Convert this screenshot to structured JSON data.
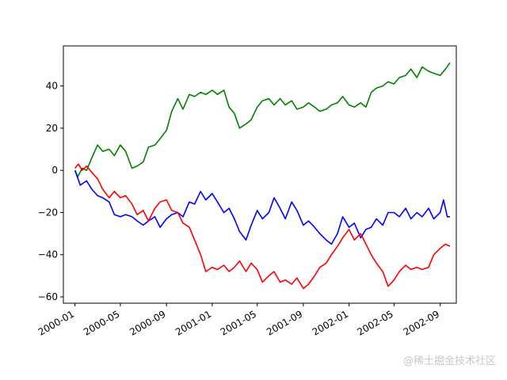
{
  "chart_data": {
    "type": "line",
    "title": "",
    "xlabel": "",
    "ylabel": "",
    "x_range": [
      "1999-12-01",
      "2002-10-14"
    ],
    "ylim": [
      -63,
      59
    ],
    "grid": false,
    "legend": "none",
    "x_ticks": [
      {
        "date": "2000-01-01",
        "label": "2000-01"
      },
      {
        "date": "2000-05-01",
        "label": "2000-05"
      },
      {
        "date": "2000-09-01",
        "label": "2000-09"
      },
      {
        "date": "2001-01-01",
        "label": "2001-01"
      },
      {
        "date": "2001-05-01",
        "label": "2001-05"
      },
      {
        "date": "2001-09-01",
        "label": "2001-09"
      },
      {
        "date": "2002-01-01",
        "label": "2002-01"
      },
      {
        "date": "2002-05-01",
        "label": "2002-05"
      },
      {
        "date": "2002-09-01",
        "label": "2002-09"
      }
    ],
    "y_ticks": [
      {
        "value": 40,
        "label": "40"
      },
      {
        "value": 20,
        "label": "20"
      },
      {
        "value": 0,
        "label": "0"
      },
      {
        "value": -20,
        "label": "−20"
      },
      {
        "value": -40,
        "label": "−40"
      },
      {
        "value": -60,
        "label": "−60"
      }
    ],
    "series": [
      {
        "color": "#008000",
        "points": [
          [
            "2000-01-01",
            0
          ],
          [
            "2000-01-08",
            -3
          ],
          [
            "2000-01-20",
            1
          ],
          [
            "2000-02-01",
            0
          ],
          [
            "2000-02-15",
            6
          ],
          [
            "2000-03-01",
            12
          ],
          [
            "2000-03-15",
            9
          ],
          [
            "2000-04-01",
            10
          ],
          [
            "2000-04-15",
            7
          ],
          [
            "2000-05-01",
            12
          ],
          [
            "2000-05-15",
            9
          ],
          [
            "2000-06-01",
            1
          ],
          [
            "2000-06-15",
            2
          ],
          [
            "2000-07-01",
            4
          ],
          [
            "2000-07-15",
            11
          ],
          [
            "2000-08-01",
            12
          ],
          [
            "2000-08-15",
            15
          ],
          [
            "2000-09-01",
            19
          ],
          [
            "2000-09-15",
            28
          ],
          [
            "2000-10-01",
            34
          ],
          [
            "2000-10-15",
            29
          ],
          [
            "2000-11-01",
            36
          ],
          [
            "2000-11-15",
            35
          ],
          [
            "2000-12-01",
            37
          ],
          [
            "2000-12-15",
            36
          ],
          [
            "2001-01-01",
            38
          ],
          [
            "2001-01-15",
            36
          ],
          [
            "2001-02-01",
            38
          ],
          [
            "2001-02-15",
            30
          ],
          [
            "2001-03-01",
            27
          ],
          [
            "2001-03-15",
            20
          ],
          [
            "2001-04-01",
            22
          ],
          [
            "2001-04-15",
            24
          ],
          [
            "2001-05-01",
            30
          ],
          [
            "2001-05-15",
            33
          ],
          [
            "2001-06-01",
            34
          ],
          [
            "2001-06-15",
            31
          ],
          [
            "2001-07-01",
            34
          ],
          [
            "2001-07-15",
            31
          ],
          [
            "2001-08-01",
            33
          ],
          [
            "2001-08-15",
            29
          ],
          [
            "2001-09-01",
            30
          ],
          [
            "2001-09-15",
            32
          ],
          [
            "2001-10-01",
            30
          ],
          [
            "2001-10-15",
            28
          ],
          [
            "2001-11-01",
            29
          ],
          [
            "2001-11-15",
            31
          ],
          [
            "2001-12-01",
            32
          ],
          [
            "2001-12-15",
            35
          ],
          [
            "2002-01-01",
            31
          ],
          [
            "2002-01-15",
            30
          ],
          [
            "2002-02-01",
            32
          ],
          [
            "2002-02-15",
            30
          ],
          [
            "2002-03-01",
            37
          ],
          [
            "2002-03-15",
            39
          ],
          [
            "2002-04-01",
            40
          ],
          [
            "2002-04-15",
            42
          ],
          [
            "2002-05-01",
            41
          ],
          [
            "2002-05-15",
            44
          ],
          [
            "2002-06-01",
            45
          ],
          [
            "2002-06-15",
            48
          ],
          [
            "2002-07-01",
            44
          ],
          [
            "2002-07-15",
            49
          ],
          [
            "2002-08-01",
            47
          ],
          [
            "2002-08-15",
            46
          ],
          [
            "2002-09-01",
            45
          ],
          [
            "2002-09-15",
            48
          ],
          [
            "2002-09-27",
            51
          ]
        ]
      },
      {
        "color": "#0000ff",
        "points": [
          [
            "2000-01-01",
            0
          ],
          [
            "2000-01-15",
            -7
          ],
          [
            "2000-02-01",
            -5
          ],
          [
            "2000-02-15",
            -9
          ],
          [
            "2000-03-01",
            -12
          ],
          [
            "2000-03-15",
            -13
          ],
          [
            "2000-04-01",
            -15
          ],
          [
            "2000-04-15",
            -21
          ],
          [
            "2000-05-01",
            -22
          ],
          [
            "2000-05-15",
            -21
          ],
          [
            "2000-06-01",
            -22
          ],
          [
            "2000-06-15",
            -24
          ],
          [
            "2000-07-01",
            -26
          ],
          [
            "2000-07-15",
            -24
          ],
          [
            "2000-08-01",
            -22
          ],
          [
            "2000-08-15",
            -27
          ],
          [
            "2000-09-01",
            -23
          ],
          [
            "2000-09-15",
            -21
          ],
          [
            "2000-10-01",
            -20
          ],
          [
            "2000-10-15",
            -22
          ],
          [
            "2000-11-01",
            -15
          ],
          [
            "2000-11-15",
            -16
          ],
          [
            "2000-12-01",
            -10
          ],
          [
            "2000-12-15",
            -14
          ],
          [
            "2001-01-01",
            -11
          ],
          [
            "2001-01-15",
            -15
          ],
          [
            "2001-02-01",
            -20
          ],
          [
            "2001-02-15",
            -18
          ],
          [
            "2001-03-01",
            -23
          ],
          [
            "2001-03-15",
            -29
          ],
          [
            "2001-04-01",
            -33
          ],
          [
            "2001-04-15",
            -26
          ],
          [
            "2001-05-01",
            -19
          ],
          [
            "2001-05-15",
            -23
          ],
          [
            "2001-06-01",
            -20
          ],
          [
            "2001-06-15",
            -13
          ],
          [
            "2001-07-01",
            -18
          ],
          [
            "2001-07-15",
            -23
          ],
          [
            "2001-08-01",
            -15
          ],
          [
            "2001-08-15",
            -19
          ],
          [
            "2001-09-01",
            -26
          ],
          [
            "2001-09-15",
            -24
          ],
          [
            "2001-10-01",
            -27
          ],
          [
            "2001-10-15",
            -30
          ],
          [
            "2001-11-01",
            -33
          ],
          [
            "2001-11-15",
            -35
          ],
          [
            "2001-12-01",
            -30
          ],
          [
            "2001-12-15",
            -22
          ],
          [
            "2002-01-01",
            -27
          ],
          [
            "2002-01-15",
            -25
          ],
          [
            "2002-02-01",
            -32
          ],
          [
            "2002-02-15",
            -28
          ],
          [
            "2002-03-01",
            -27
          ],
          [
            "2002-03-15",
            -23
          ],
          [
            "2002-04-01",
            -26
          ],
          [
            "2002-04-15",
            -20
          ],
          [
            "2002-05-01",
            -20
          ],
          [
            "2002-05-15",
            -22
          ],
          [
            "2002-06-01",
            -18
          ],
          [
            "2002-06-15",
            -23
          ],
          [
            "2002-07-01",
            -20
          ],
          [
            "2002-07-15",
            -22
          ],
          [
            "2002-08-01",
            -18
          ],
          [
            "2002-08-15",
            -23
          ],
          [
            "2002-09-01",
            -20
          ],
          [
            "2002-09-10",
            -14
          ],
          [
            "2002-09-20",
            -22
          ],
          [
            "2002-09-27",
            -22
          ]
        ]
      },
      {
        "color": "#ff0000",
        "points": [
          [
            "2000-01-01",
            1
          ],
          [
            "2000-01-10",
            3
          ],
          [
            "2000-01-20",
            0
          ],
          [
            "2000-02-01",
            2
          ],
          [
            "2000-02-15",
            -1
          ],
          [
            "2000-03-01",
            -4
          ],
          [
            "2000-03-15",
            -9
          ],
          [
            "2000-04-01",
            -13
          ],
          [
            "2000-04-15",
            -10
          ],
          [
            "2000-05-01",
            -13
          ],
          [
            "2000-05-15",
            -12
          ],
          [
            "2000-06-01",
            -16
          ],
          [
            "2000-06-15",
            -21
          ],
          [
            "2000-07-01",
            -19
          ],
          [
            "2000-07-15",
            -24
          ],
          [
            "2000-08-01",
            -18
          ],
          [
            "2000-08-15",
            -15
          ],
          [
            "2000-09-01",
            -14
          ],
          [
            "2000-09-15",
            -19
          ],
          [
            "2000-10-01",
            -20
          ],
          [
            "2000-10-15",
            -25
          ],
          [
            "2000-11-01",
            -27
          ],
          [
            "2000-11-15",
            -33
          ],
          [
            "2000-12-01",
            -40
          ],
          [
            "2000-12-15",
            -48
          ],
          [
            "2001-01-01",
            -46
          ],
          [
            "2001-01-15",
            -47
          ],
          [
            "2001-02-01",
            -45
          ],
          [
            "2001-02-15",
            -48
          ],
          [
            "2001-03-01",
            -46
          ],
          [
            "2001-03-15",
            -43
          ],
          [
            "2001-04-01",
            -48
          ],
          [
            "2001-04-15",
            -44
          ],
          [
            "2001-05-01",
            -47
          ],
          [
            "2001-05-15",
            -53
          ],
          [
            "2001-06-01",
            -50
          ],
          [
            "2001-06-15",
            -48
          ],
          [
            "2001-07-01",
            -53
          ],
          [
            "2001-07-15",
            -52
          ],
          [
            "2001-08-01",
            -54
          ],
          [
            "2001-08-15",
            -51
          ],
          [
            "2001-09-01",
            -56
          ],
          [
            "2001-09-15",
            -54
          ],
          [
            "2001-10-01",
            -50
          ],
          [
            "2001-10-15",
            -46
          ],
          [
            "2001-11-01",
            -44
          ],
          [
            "2001-11-15",
            -40
          ],
          [
            "2001-12-01",
            -36
          ],
          [
            "2001-12-15",
            -32
          ],
          [
            "2002-01-01",
            -28
          ],
          [
            "2002-01-15",
            -33
          ],
          [
            "2002-02-01",
            -30
          ],
          [
            "2002-02-15",
            -35
          ],
          [
            "2002-03-01",
            -40
          ],
          [
            "2002-03-15",
            -44
          ],
          [
            "2002-04-01",
            -48
          ],
          [
            "2002-04-15",
            -55
          ],
          [
            "2002-05-01",
            -52
          ],
          [
            "2002-05-15",
            -48
          ],
          [
            "2002-06-01",
            -45
          ],
          [
            "2002-06-15",
            -47
          ],
          [
            "2002-07-01",
            -46
          ],
          [
            "2002-07-15",
            -47
          ],
          [
            "2002-08-01",
            -46
          ],
          [
            "2002-08-15",
            -40
          ],
          [
            "2002-09-01",
            -37
          ],
          [
            "2002-09-15",
            -35
          ],
          [
            "2002-09-27",
            -36
          ]
        ]
      }
    ]
  },
  "watermark": "@稀土掘金技术社区"
}
